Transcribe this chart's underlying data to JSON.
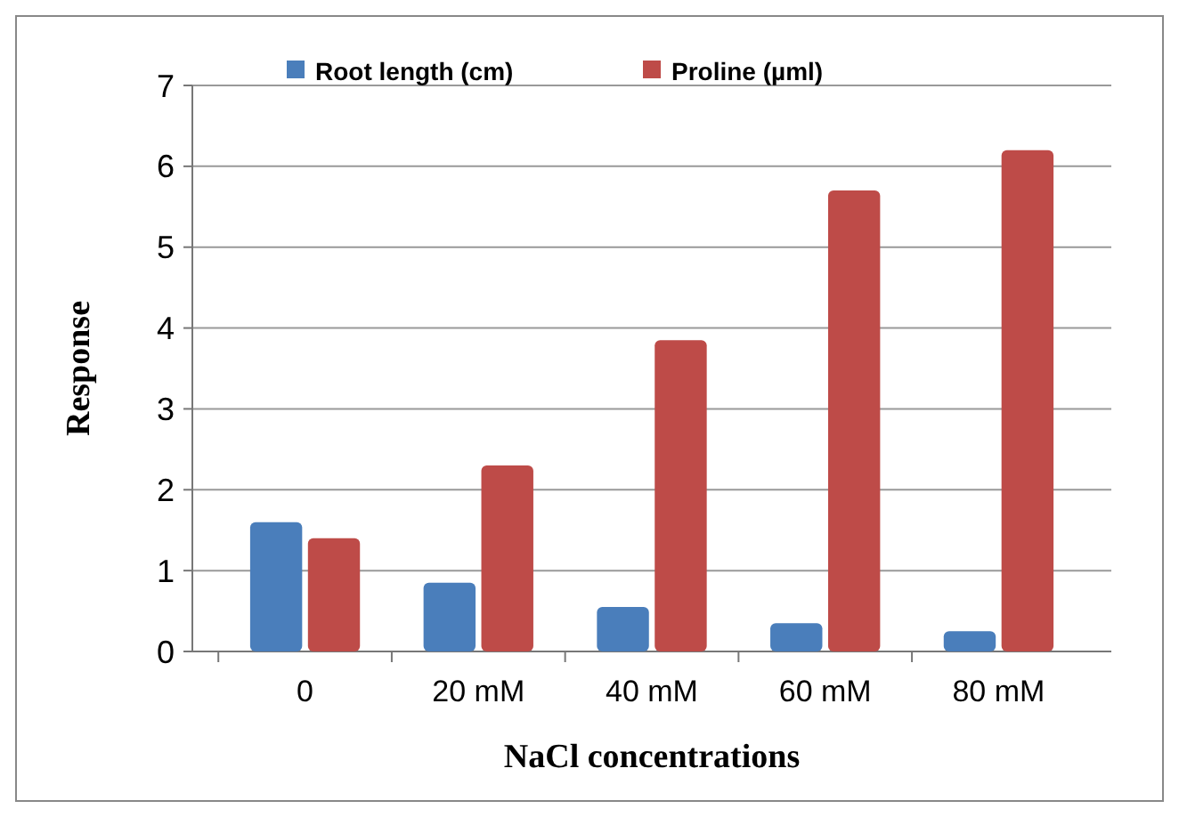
{
  "chart_data": {
    "type": "bar",
    "xlabel": "NaCl concentrations",
    "ylabel": "Response",
    "categories": [
      "0",
      "20 mM",
      "40 mM",
      "60 mM",
      "80 mM"
    ],
    "series": [
      {
        "name": "Root length (cm)",
        "color": "#4a7ebb",
        "values": [
          1.6,
          0.85,
          0.55,
          0.35,
          0.25
        ]
      },
      {
        "name": "Proline (µml)",
        "color": "#be4b48",
        "values": [
          1.4,
          2.3,
          3.85,
          5.7,
          6.2
        ]
      }
    ],
    "ylim": [
      0,
      7
    ],
    "yticks": [
      0,
      1,
      2,
      3,
      4,
      5,
      6,
      7
    ],
    "grid": "y",
    "legend": "top"
  }
}
